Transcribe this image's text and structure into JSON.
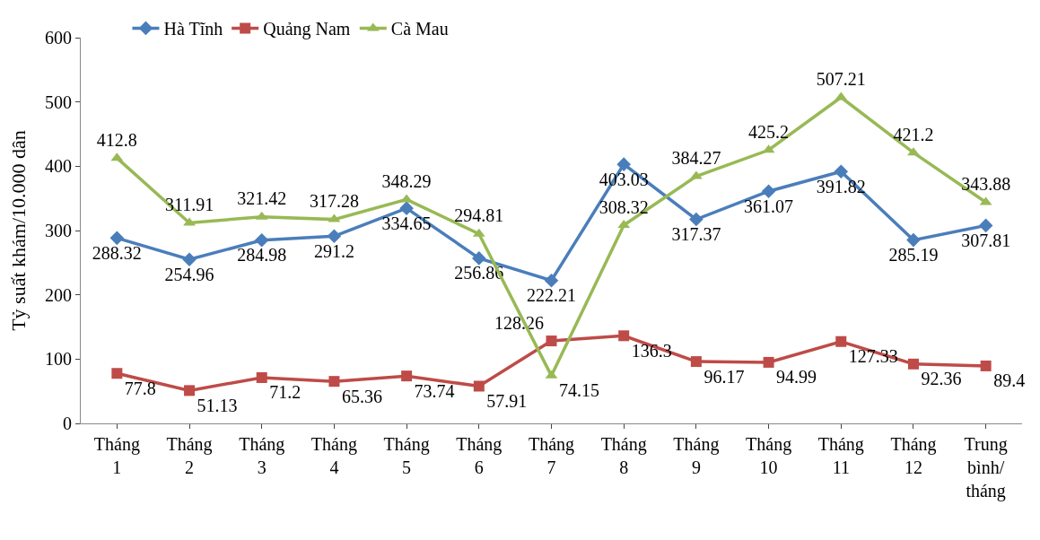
{
  "chart_data": {
    "type": "line",
    "ylabel": "Tỷ suất khám/10.000 dân",
    "categories": [
      "Tháng 1",
      "Tháng 2",
      "Tháng 3",
      "Tháng 4",
      "Tháng 5",
      "Tháng 6",
      "Tháng 7",
      "Tháng 8",
      "Tháng 9",
      "Tháng 10",
      "Tháng 11",
      "Tháng 12",
      "Trung bình/ tháng"
    ],
    "series": [
      {
        "name": "Hà Tĩnh",
        "color": "#4a7ebb",
        "marker": "diamond",
        "values": [
          288.32,
          254.96,
          284.98,
          291.2,
          334.65,
          256.86,
          222.21,
          403.03,
          317.37,
          361.07,
          391.82,
          285.19,
          307.81
        ]
      },
      {
        "name": "Quảng Nam",
        "color": "#be4b48",
        "marker": "square",
        "values": [
          77.8,
          51.13,
          71.2,
          65.36,
          73.74,
          57.91,
          128.26,
          136.3,
          96.17,
          94.99,
          127.33,
          92.36,
          89.4
        ]
      },
      {
        "name": "Cà Mau",
        "color": "#98b954",
        "marker": "triangle",
        "values": [
          412.8,
          311.91,
          321.42,
          317.28,
          348.29,
          294.81,
          74.15,
          308.32,
          384.27,
          425.2,
          507.21,
          421.2,
          343.88
        ]
      }
    ],
    "ylim": [
      0,
      600
    ],
    "yticks": [
      0,
      100,
      200,
      300,
      400,
      500,
      600
    ],
    "legend": "top",
    "data_labels": true,
    "line_style": "solid"
  }
}
